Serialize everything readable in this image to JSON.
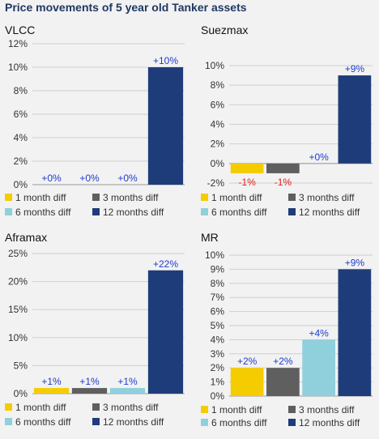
{
  "page_title": "Price movements of 5 year old Tanker assets",
  "colors": {
    "series": [
      "#f5cc00",
      "#5f5f5f",
      "#8fd0dc",
      "#1f3c7a"
    ],
    "positive_label": "#1f3ccc",
    "negative_label": "#e02020",
    "axis_text": "#333333",
    "grid": "#cfcfcf"
  },
  "chart_data": [
    {
      "type": "bar",
      "title": "VLCC",
      "series": [
        {
          "name": "1 month diff",
          "value": 0
        },
        {
          "name": "3 months diff",
          "value": 0
        },
        {
          "name": "6 months diff",
          "value": 0
        },
        {
          "name": "12 months diff",
          "value": 10
        }
      ],
      "data_labels": [
        "+0%",
        "+0%",
        "+0%",
        "+10%"
      ],
      "y_ticks": [
        "12%",
        "10%",
        "8%",
        "6%",
        "4%",
        "2%",
        "0%"
      ],
      "ylim": [
        0,
        12
      ],
      "legend_position": "bottom"
    },
    {
      "type": "bar",
      "title": "Suezmax",
      "series": [
        {
          "name": "1 month diff",
          "value": -1
        },
        {
          "name": "3 months diff",
          "value": -1
        },
        {
          "name": "6 months diff",
          "value": 0
        },
        {
          "name": "12 months diff",
          "value": 9
        }
      ],
      "data_labels": [
        "-1%",
        "-1%",
        "+0%",
        "+9%"
      ],
      "y_ticks": [
        "10%",
        "8%",
        "6%",
        "4%",
        "2%",
        "0%",
        "-2%"
      ],
      "ylim": [
        -2,
        10
      ],
      "legend_position": "bottom"
    },
    {
      "type": "bar",
      "title": "Aframax",
      "series": [
        {
          "name": "1 month diff",
          "value": 1
        },
        {
          "name": "3 months diff",
          "value": 1
        },
        {
          "name": "6 months diff",
          "value": 1
        },
        {
          "name": "12 months diff",
          "value": 22
        }
      ],
      "data_labels": [
        "+1%",
        "+1%",
        "+1%",
        "+22%"
      ],
      "y_ticks": [
        "25%",
        "20%",
        "15%",
        "10%",
        "5%",
        "0%"
      ],
      "ylim": [
        0,
        25
      ],
      "legend_position": "bottom"
    },
    {
      "type": "bar",
      "title": "MR",
      "series": [
        {
          "name": "1 month diff",
          "value": 2
        },
        {
          "name": "3 months diff",
          "value": 2
        },
        {
          "name": "6 months diff",
          "value": 4
        },
        {
          "name": "12 months diff",
          "value": 9
        }
      ],
      "data_labels": [
        "+2%",
        "+2%",
        "+4%",
        "+9%"
      ],
      "y_ticks": [
        "10%",
        "9%",
        "8%",
        "7%",
        "6%",
        "5%",
        "4%",
        "3%",
        "2%",
        "1%",
        "0%"
      ],
      "ylim": [
        0,
        10
      ],
      "legend_position": "bottom"
    }
  ]
}
